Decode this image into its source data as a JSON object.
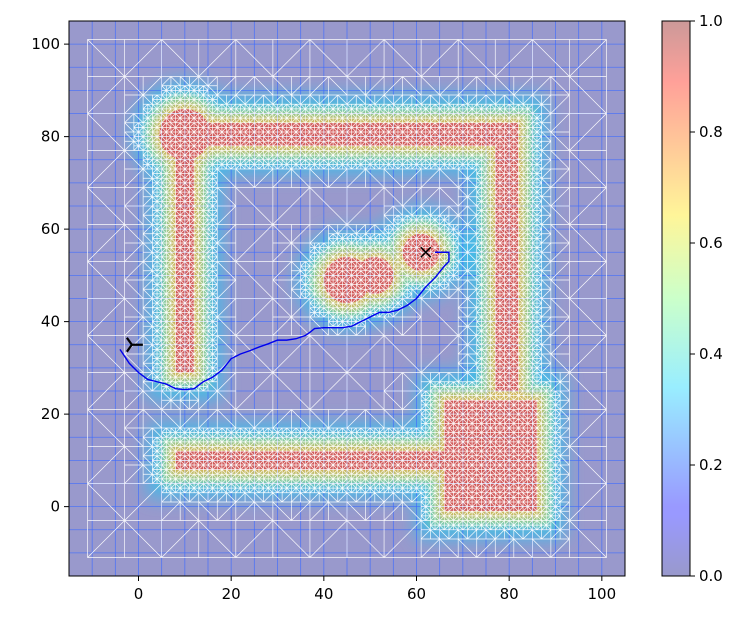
{
  "chart_data": {
    "type": "heatmap",
    "title": "",
    "xlabel": "",
    "ylabel": "",
    "xlim": [
      -15,
      105
    ],
    "ylim": [
      -15,
      105
    ],
    "xticks": [
      0,
      20,
      40,
      60,
      80,
      100
    ],
    "yticks": [
      0,
      20,
      40,
      60,
      80,
      100
    ],
    "mesh_extent": {
      "x": [
        -11,
        101
      ],
      "y": [
        -11,
        101
      ]
    },
    "grid": true,
    "colormap": "jet",
    "colormap_alpha": 0.4,
    "colorbar": {
      "min": 0.0,
      "max": 1.0,
      "ticks": [
        "0.0",
        "0.2",
        "0.4",
        "0.6",
        "0.8",
        "1.0"
      ]
    },
    "obstacles": [
      {
        "shape": "circle",
        "cx": 10,
        "cy": 80.5,
        "r": 5.5
      },
      {
        "shape": "rect",
        "x0": 8,
        "x1": 12,
        "y0": 29,
        "y1": 80
      },
      {
        "shape": "rect",
        "x0": 10,
        "x1": 82,
        "y0": 78,
        "y1": 83
      },
      {
        "shape": "rect",
        "x0": 77,
        "x1": 82,
        "y0": 25,
        "y1": 83
      },
      {
        "shape": "rect",
        "x0": 66,
        "x1": 86,
        "y0": -1,
        "y1": 23
      },
      {
        "shape": "rect",
        "x0": 8,
        "x1": 67,
        "y0": 8,
        "y1": 12
      },
      {
        "shape": "circle",
        "cx": 45,
        "cy": 49,
        "r": 5
      },
      {
        "shape": "circle",
        "cx": 51,
        "cy": 50,
        "r": 4
      },
      {
        "shape": "circle",
        "cx": 61,
        "cy": 55,
        "r": 4
      }
    ],
    "start_marker": {
      "symbol": "tri_right",
      "x": -1,
      "y": 35
    },
    "goal_marker": {
      "symbol": "x",
      "x": 62,
      "y": 55
    },
    "path": {
      "color": "#0000ee",
      "x": [
        -4,
        -2,
        0,
        2,
        4,
        6,
        8,
        10,
        12,
        14,
        16,
        18,
        20,
        22,
        24,
        26,
        28,
        30,
        32,
        34,
        36,
        37,
        38,
        40,
        42,
        44,
        46,
        48,
        50,
        52,
        54,
        56,
        58,
        60,
        62,
        64,
        66,
        67,
        67,
        64
      ],
      "y": [
        34,
        31,
        29,
        27.5,
        27,
        26.5,
        25.5,
        25.3,
        25.5,
        27,
        28,
        29.5,
        32,
        33,
        33.7,
        34.5,
        35.2,
        36,
        36,
        36.3,
        37,
        37.7,
        38.5,
        38.7,
        38.7,
        38.7,
        39,
        40,
        41,
        42,
        42,
        42.5,
        43.5,
        45,
        47.5,
        49.5,
        52,
        53,
        55,
        55
      ]
    }
  }
}
